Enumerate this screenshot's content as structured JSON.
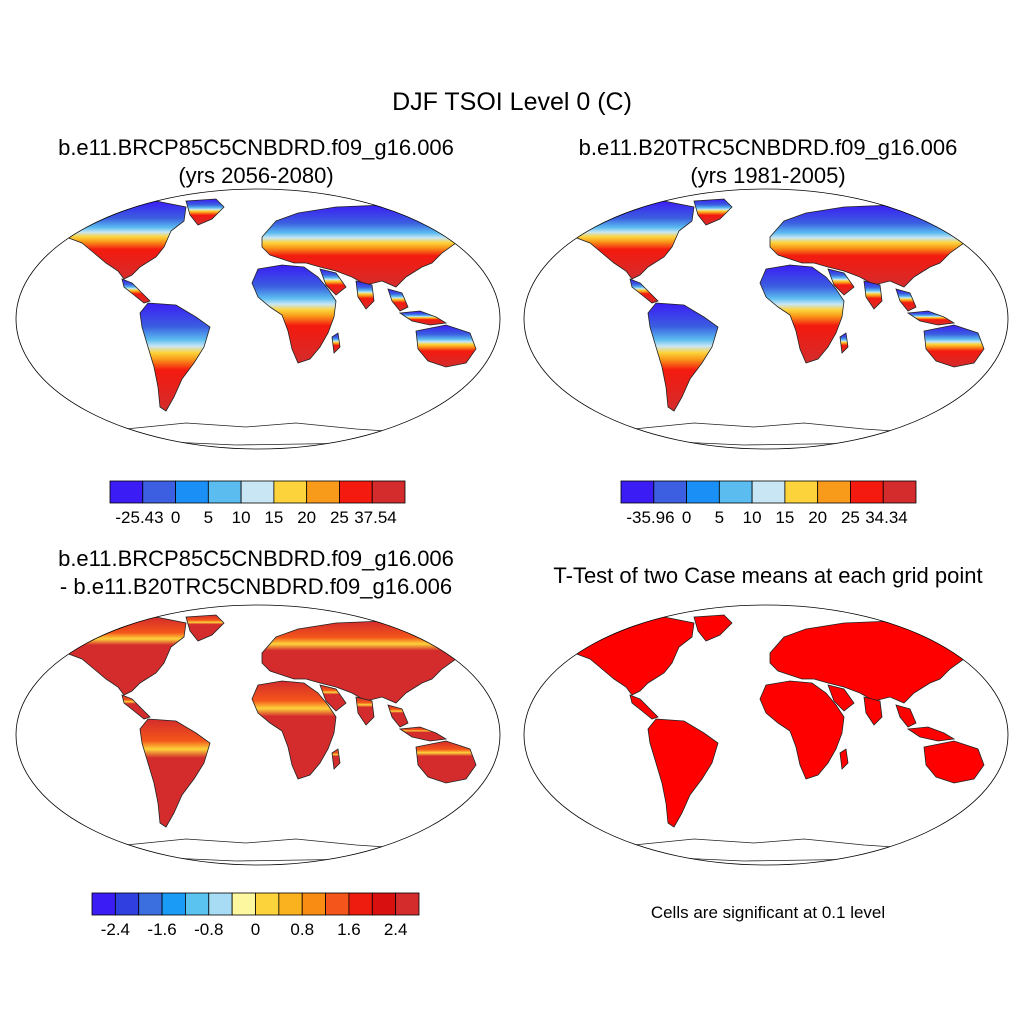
{
  "figure": {
    "title": "DJF TSOI Level 0 (C)",
    "note": "Cells are significant at 0.1 level"
  },
  "panels": [
    {
      "title_line1": "b.e11.BRCP85C5CNBDRD.f09_g16.006",
      "title_line2": "(yrs 2056-2080)",
      "colorbar": {
        "labels": [
          "-25.43",
          "0",
          "5",
          "10",
          "15",
          "20",
          "25",
          "37.54"
        ],
        "colors": [
          "#3b1cf5",
          "#3b5fe0",
          "#1a8ff5",
          "#5bbcf0",
          "#c8e6f4",
          "#fdd33b",
          "#f99b1a",
          "#f41a0f",
          "#d42c2c"
        ]
      }
    },
    {
      "title_line1": "b.e11.B20TRC5CNBDRD.f09_g16.006",
      "title_line2": "(yrs 1981-2005)",
      "colorbar": {
        "labels": [
          "-35.96",
          "0",
          "5",
          "10",
          "15",
          "20",
          "25",
          "34.34"
        ],
        "colors": [
          "#3b1cf5",
          "#3b5fe0",
          "#1a8ff5",
          "#5bbcf0",
          "#c8e6f4",
          "#fdd33b",
          "#f99b1a",
          "#f41a0f",
          "#d42c2c"
        ]
      }
    },
    {
      "title_line1": "b.e11.BRCP85C5CNBDRD.f09_g16.006",
      "title_line2": "- b.e11.B20TRC5CNBDRD.f09_g16.006",
      "colorbar": {
        "labels": [
          "-2.4",
          "-1.6",
          "-0.8",
          "0",
          "0.8",
          "1.6",
          "2.4"
        ],
        "colors": [
          "#3b1cf5",
          "#2f3fe0",
          "#3b6fe0",
          "#1a9bf5",
          "#5bc3f0",
          "#a8dcf4",
          "#fdf7a0",
          "#fdd33b",
          "#fbb21f",
          "#f98c12",
          "#f4551a",
          "#ee1c0f",
          "#d81010",
          "#d42c2c"
        ]
      }
    },
    {
      "title_line1": "T-Test of two Case means at each grid point"
    }
  ]
}
